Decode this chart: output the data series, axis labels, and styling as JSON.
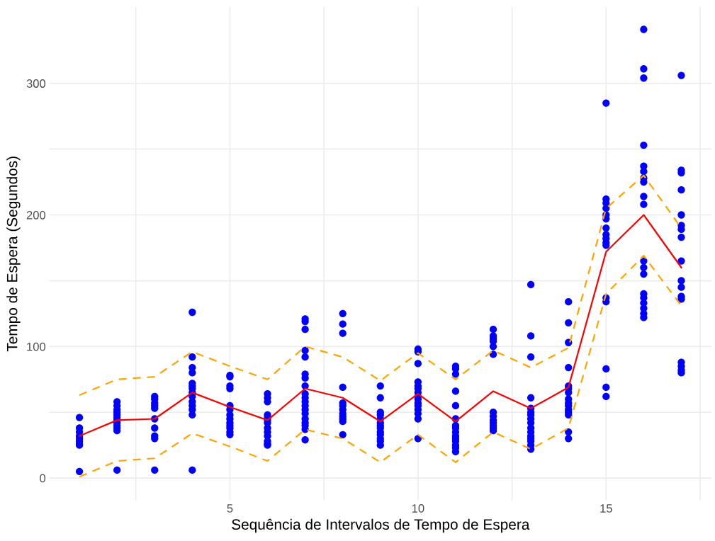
{
  "chart_data": {
    "type": "scatter",
    "xlabel": "Sequência de Intervalos de Tempo de Espera",
    "ylabel": "Tempo de Espera (Segundos)",
    "xlim": [
      0.2,
      17.8
    ],
    "ylim": [
      -17,
      358
    ],
    "xticks": [
      {
        "value": 2.5,
        "label": null
      },
      5,
      {
        "value": 7.5,
        "label": null
      },
      10,
      {
        "value": 12.5,
        "label": null
      },
      15,
      {
        "value": 17.5,
        "label": null
      }
    ],
    "yticks": [
      0,
      {
        "value": 50,
        "label": null
      },
      100,
      {
        "value": 150,
        "label": null
      },
      200,
      {
        "value": 250,
        "label": null
      },
      300
    ],
    "grid": true,
    "legend": false,
    "series": [
      {
        "color": "#0000ff",
        "marker": "circle",
        "x": [
          1,
          1,
          1,
          1,
          1,
          1,
          1,
          1,
          1,
          2,
          2,
          2,
          2,
          2,
          2,
          2,
          2,
          2,
          2,
          2,
          2,
          3,
          3,
          3,
          3,
          3,
          3,
          3,
          3,
          3,
          3,
          4,
          4,
          4,
          4,
          4,
          4,
          4,
          4,
          4,
          4,
          4,
          4,
          4,
          4,
          5,
          5,
          5,
          5,
          5,
          5,
          5,
          5,
          5,
          5,
          5,
          5,
          5,
          6,
          6,
          6,
          6,
          6,
          6,
          6,
          6,
          6,
          6,
          6,
          6,
          6,
          7,
          7,
          7,
          7,
          7,
          7,
          7,
          7,
          7,
          7,
          7,
          7,
          7,
          7,
          7,
          7,
          7,
          7,
          7,
          8,
          8,
          8,
          8,
          8,
          8,
          8,
          8,
          8,
          8,
          8,
          8,
          9,
          9,
          9,
          9,
          9,
          9,
          9,
          9,
          9,
          9,
          9,
          9,
          9,
          10,
          10,
          10,
          10,
          10,
          10,
          10,
          10,
          10,
          10,
          10,
          10,
          10,
          10,
          10,
          11,
          11,
          11,
          11,
          11,
          11,
          11,
          11,
          11,
          11,
          11,
          11,
          11,
          11,
          11,
          12,
          12,
          12,
          12,
          12,
          12,
          12,
          12,
          12,
          12,
          12,
          12,
          12,
          13,
          13,
          13,
          13,
          13,
          13,
          13,
          13,
          13,
          13,
          13,
          13,
          13,
          13,
          13,
          13,
          14,
          14,
          14,
          14,
          14,
          14,
          14,
          14,
          14,
          14,
          14,
          14,
          14,
          14,
          14,
          15,
          15,
          15,
          15,
          15,
          15,
          15,
          15,
          15,
          15,
          15,
          15,
          15,
          15,
          15,
          15,
          16,
          16,
          16,
          16,
          16,
          16,
          16,
          16,
          16,
          16,
          16,
          16,
          16,
          16,
          16,
          16,
          16,
          16,
          16,
          17,
          17,
          17,
          17,
          17,
          17,
          17,
          17,
          17,
          17,
          17,
          17,
          17,
          17,
          17,
          17,
          17
        ],
        "values": [
          46,
          38,
          35,
          32,
          30,
          28,
          26,
          25,
          5,
          58,
          55,
          52,
          50,
          48,
          46,
          44,
          42,
          40,
          38,
          36,
          6,
          62,
          60,
          57,
          55,
          53,
          45,
          38,
          32,
          30,
          6,
          126,
          92,
          84,
          80,
          72,
          70,
          68,
          65,
          62,
          58,
          55,
          52,
          48,
          6,
          78,
          77,
          70,
          68,
          55,
          52,
          48,
          45,
          42,
          40,
          38,
          35,
          33,
          64,
          61,
          58,
          48,
          46,
          44,
          42,
          38,
          35,
          32,
          28,
          26,
          25,
          121,
          119,
          113,
          97,
          92,
          79,
          76,
          70,
          64,
          61,
          58,
          55,
          52,
          49,
          45,
          42,
          40,
          37,
          29,
          125,
          117,
          110,
          69,
          57,
          55,
          52,
          49,
          47,
          45,
          43,
          33,
          70,
          61,
          50,
          48,
          45,
          42,
          40,
          38,
          35,
          33,
          30,
          28,
          25,
          98,
          96,
          87,
          73,
          70,
          68,
          65,
          62,
          60,
          57,
          55,
          52,
          49,
          45,
          30,
          85,
          83,
          79,
          66,
          55,
          45,
          40,
          38,
          35,
          32,
          30,
          28,
          25,
          23,
          20,
          113,
          108,
          106,
          104,
          100,
          94,
          50,
          47,
          44,
          42,
          40,
          38,
          36,
          147,
          108,
          92,
          61,
          53,
          50,
          48,
          45,
          42,
          38,
          35,
          32,
          30,
          28,
          25,
          22,
          134,
          118,
          103,
          84,
          70,
          68,
          65,
          60,
          57,
          55,
          52,
          50,
          48,
          35,
          30,
          285,
          212,
          209,
          205,
          200,
          197,
          190,
          185,
          182,
          179,
          177,
          137,
          134,
          83,
          69,
          62,
          341,
          311,
          304,
          253,
          237,
          233,
          228,
          225,
          214,
          208,
          165,
          160,
          155,
          140,
          137,
          133,
          129,
          125,
          122,
          306,
          234,
          232,
          219,
          200,
          192,
          189,
          183,
          165,
          150,
          145,
          138,
          136,
          88,
          85,
          82,
          80
        ]
      },
      {
        "type": "line",
        "color": "#ff0000",
        "line_style": "solid",
        "x": [
          1,
          2,
          3,
          4,
          5,
          6,
          7,
          8,
          9,
          10,
          11,
          12,
          13,
          14,
          15,
          16,
          17
        ],
        "values": [
          32,
          44,
          45,
          65,
          54,
          44,
          68,
          61,
          43,
          64,
          43,
          66,
          53,
          69,
          172,
          200,
          160
        ]
      },
      {
        "type": "line",
        "color": "#ffa500",
        "line_style": "dashed",
        "x": [
          1,
          2,
          3,
          4,
          5,
          6,
          7,
          8,
          9,
          10,
          11,
          12,
          13,
          14,
          15,
          16,
          17
        ],
        "values": [
          63,
          75,
          77,
          96,
          85,
          75,
          100,
          92,
          74,
          95,
          75,
          97,
          84,
          99,
          205,
          230,
          190
        ]
      },
      {
        "type": "line",
        "color": "#ffa500",
        "line_style": "dashed",
        "x": [
          1,
          2,
          3,
          4,
          5,
          6,
          7,
          8,
          9,
          10,
          11,
          12,
          13,
          14,
          15,
          16,
          17
        ],
        "values": [
          1,
          13,
          15,
          34,
          24,
          13,
          37,
          30,
          12,
          33,
          12,
          35,
          22,
          38,
          140,
          169,
          131
        ]
      }
    ]
  }
}
